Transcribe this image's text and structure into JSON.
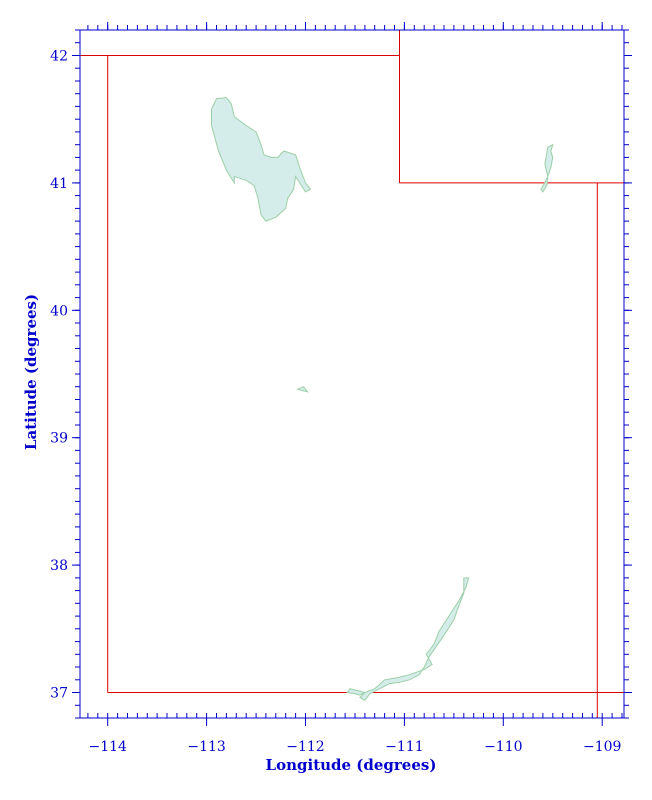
{
  "map": {
    "x_axis": {
      "label": "Longitude (degrees)",
      "range": [
        -114.28,
        -108.78
      ],
      "major_ticks": [
        -114,
        -113,
        -112,
        -111,
        -110,
        -109
      ],
      "tick_labels": [
        "−114",
        "−113",
        "−112",
        "−111",
        "−110",
        "−109"
      ],
      "minor_step": 0.1
    },
    "y_axis": {
      "label": "Latitude (degrees)",
      "range": [
        36.8,
        42.2
      ],
      "major_ticks": [
        37,
        38,
        39,
        40,
        41,
        42
      ],
      "tick_labels": [
        "37",
        "38",
        "39",
        "40",
        "41",
        "42"
      ],
      "minor_step": 0.1
    },
    "colors": {
      "axis": "#0000cc",
      "boundary": "#dd0000",
      "water_fill": "#d4ecea",
      "water_stroke": "#9ccfa8"
    },
    "boundaries": [
      {
        "name": "utah-west-border",
        "points": [
          [
            -114.0,
            37.0
          ],
          [
            -114.0,
            42.0
          ]
        ]
      },
      {
        "name": "utah-north-border",
        "points": [
          [
            -114.28,
            42.0
          ],
          [
            -111.05,
            42.0
          ]
        ]
      },
      {
        "name": "utah-notch-west",
        "points": [
          [
            -111.05,
            42.2
          ],
          [
            -111.05,
            41.0
          ]
        ]
      },
      {
        "name": "utah-notch-south",
        "points": [
          [
            -111.05,
            41.0
          ],
          [
            -108.78,
            41.0
          ]
        ]
      },
      {
        "name": "utah-east-border",
        "points": [
          [
            -109.05,
            41.0
          ],
          [
            -109.05,
            36.8
          ]
        ]
      },
      {
        "name": "utah-south-border",
        "points": [
          [
            -114.0,
            37.0
          ],
          [
            -108.78,
            37.0
          ]
        ]
      }
    ],
    "water_bodies": [
      {
        "name": "great-salt-lake",
        "points": [
          [
            -112.9,
            41.66
          ],
          [
            -112.8,
            41.67
          ],
          [
            -112.75,
            41.62
          ],
          [
            -112.72,
            41.52
          ],
          [
            -112.6,
            41.45
          ],
          [
            -112.5,
            41.4
          ],
          [
            -112.45,
            41.3
          ],
          [
            -112.42,
            41.22
          ],
          [
            -112.35,
            41.2
          ],
          [
            -112.28,
            41.2
          ],
          [
            -112.22,
            41.25
          ],
          [
            -112.1,
            41.22
          ],
          [
            -112.05,
            41.1
          ],
          [
            -112.0,
            41.0
          ],
          [
            -111.95,
            40.95
          ],
          [
            -112.0,
            40.93
          ],
          [
            -112.1,
            41.05
          ],
          [
            -112.12,
            40.95
          ],
          [
            -112.18,
            40.88
          ],
          [
            -112.2,
            40.8
          ],
          [
            -112.3,
            40.73
          ],
          [
            -112.4,
            40.7
          ],
          [
            -112.45,
            40.75
          ],
          [
            -112.48,
            40.88
          ],
          [
            -112.52,
            40.98
          ],
          [
            -112.6,
            41.02
          ],
          [
            -112.72,
            41.05
          ],
          [
            -112.72,
            41.0
          ],
          [
            -112.8,
            41.1
          ],
          [
            -112.88,
            41.25
          ],
          [
            -112.95,
            41.45
          ],
          [
            -112.95,
            41.58
          ]
        ]
      },
      {
        "name": "flaming-gorge-reservoir",
        "points": [
          [
            -109.55,
            41.28
          ],
          [
            -109.5,
            41.3
          ],
          [
            -109.52,
            41.25
          ],
          [
            -109.5,
            41.2
          ],
          [
            -109.52,
            41.12
          ],
          [
            -109.55,
            41.05
          ],
          [
            -109.58,
            41.0
          ],
          [
            -109.62,
            40.95
          ],
          [
            -109.6,
            40.93
          ],
          [
            -109.56,
            40.98
          ],
          [
            -109.55,
            41.05
          ],
          [
            -109.58,
            41.15
          ]
        ]
      },
      {
        "name": "utah-lake",
        "points": [
          [
            -112.08,
            39.38
          ],
          [
            -112.02,
            39.4
          ],
          [
            -111.98,
            39.36
          ],
          [
            -112.03,
            39.37
          ]
        ]
      },
      {
        "name": "lake-powell",
        "points": [
          [
            -110.4,
            37.9
          ],
          [
            -110.35,
            37.9
          ],
          [
            -110.38,
            37.82
          ],
          [
            -110.45,
            37.72
          ],
          [
            -110.55,
            37.6
          ],
          [
            -110.65,
            37.48
          ],
          [
            -110.7,
            37.38
          ],
          [
            -110.78,
            37.3
          ],
          [
            -110.72,
            37.22
          ],
          [
            -110.8,
            37.18
          ],
          [
            -110.95,
            37.14
          ],
          [
            -111.05,
            37.12
          ],
          [
            -111.2,
            37.1
          ],
          [
            -111.3,
            37.03
          ],
          [
            -111.4,
            37.0
          ],
          [
            -111.45,
            36.96
          ],
          [
            -111.4,
            36.94
          ],
          [
            -111.35,
            36.99
          ],
          [
            -111.25,
            37.03
          ],
          [
            -111.15,
            37.07
          ],
          [
            -111.05,
            37.08
          ],
          [
            -110.95,
            37.1
          ],
          [
            -110.85,
            37.14
          ],
          [
            -110.8,
            37.2
          ],
          [
            -110.75,
            37.28
          ],
          [
            -110.68,
            37.36
          ],
          [
            -110.6,
            37.45
          ],
          [
            -110.5,
            37.57
          ],
          [
            -110.45,
            37.68
          ],
          [
            -110.4,
            37.78
          ]
        ]
      },
      {
        "name": "lake-powell-west-arm",
        "points": [
          [
            -111.4,
            37.0
          ],
          [
            -111.5,
            37.02
          ],
          [
            -111.55,
            37.03
          ],
          [
            -111.58,
            37.0
          ],
          [
            -111.5,
            36.99
          ],
          [
            -111.45,
            36.98
          ]
        ]
      }
    ]
  }
}
